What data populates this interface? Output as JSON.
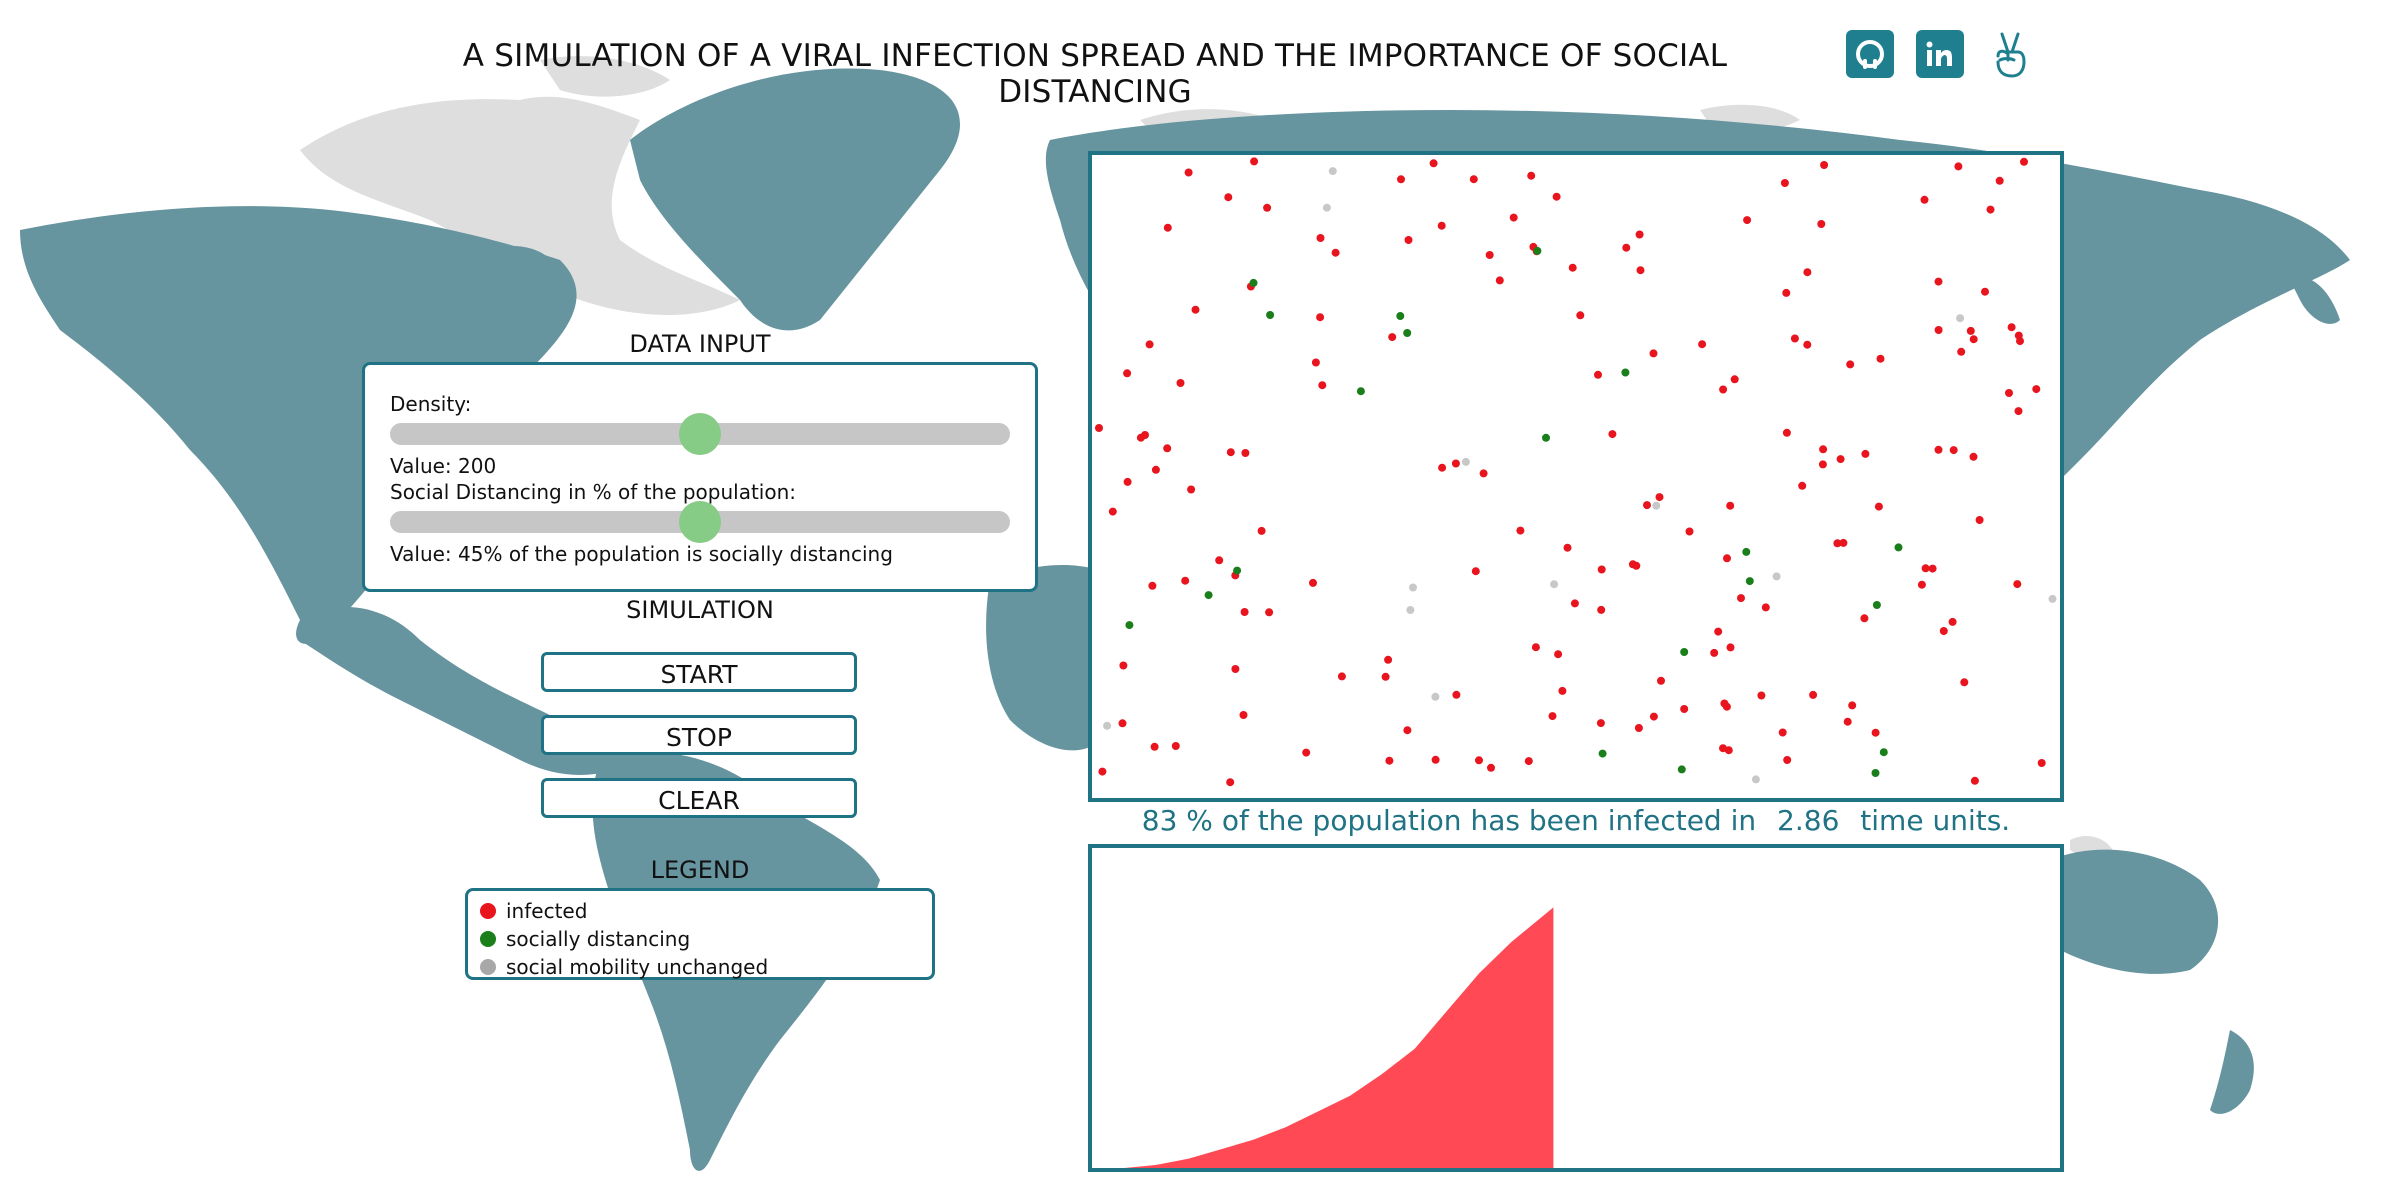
{
  "header": {
    "title": "A SIMULATION OF A VIRAL INFECTION SPREAD AND THE IMPORTANCE OF SOCIAL DISTANCING",
    "icons": [
      "github-icon",
      "linkedin-icon",
      "angellist-icon"
    ]
  },
  "data_input": {
    "heading": "DATA INPUT",
    "density_label": "Density:",
    "density_fraction": 0.5,
    "density_value_text": "Value: 200",
    "distancing_label": "Social Distancing in % of the population:",
    "distancing_fraction": 0.5,
    "distancing_value_text": "Value: 45% of the population is socially distancing"
  },
  "simulation": {
    "heading": "SIMULATION",
    "start_label": "START",
    "stop_label": "STOP",
    "clear_label": "CLEAR"
  },
  "legend": {
    "heading": "LEGEND",
    "items": [
      {
        "label": "infected",
        "color": "#e8141e"
      },
      {
        "label": "socially distancing",
        "color": "#1a7f1a"
      },
      {
        "label": "social mobility unchanged",
        "color": "#a8a8a8"
      }
    ]
  },
  "result": {
    "percent_text": "83 % of the population has been infected in",
    "time_value": "2.86",
    "time_units": "time units."
  },
  "colors": {
    "accent": "#1f7384",
    "map_land": "#66949f",
    "map_ice": "#dedede",
    "infected": "#e8141e",
    "distancing": "#1a7f1a",
    "unchanged": "#c8c8c8",
    "chart_fill": "#ff4a55"
  },
  "chart_data": {
    "type": "area",
    "x_range": [
      0,
      6
    ],
    "y_range": [
      0,
      1
    ],
    "points": [
      [
        0.0,
        0.0
      ],
      [
        0.2,
        0.0
      ],
      [
        0.4,
        0.01
      ],
      [
        0.6,
        0.03
      ],
      [
        0.8,
        0.06
      ],
      [
        1.0,
        0.09
      ],
      [
        1.2,
        0.13
      ],
      [
        1.4,
        0.18
      ],
      [
        1.6,
        0.23
      ],
      [
        1.8,
        0.3
      ],
      [
        2.0,
        0.38
      ],
      [
        2.2,
        0.5
      ],
      [
        2.4,
        0.62
      ],
      [
        2.6,
        0.72
      ],
      [
        2.86,
        0.83
      ]
    ]
  }
}
